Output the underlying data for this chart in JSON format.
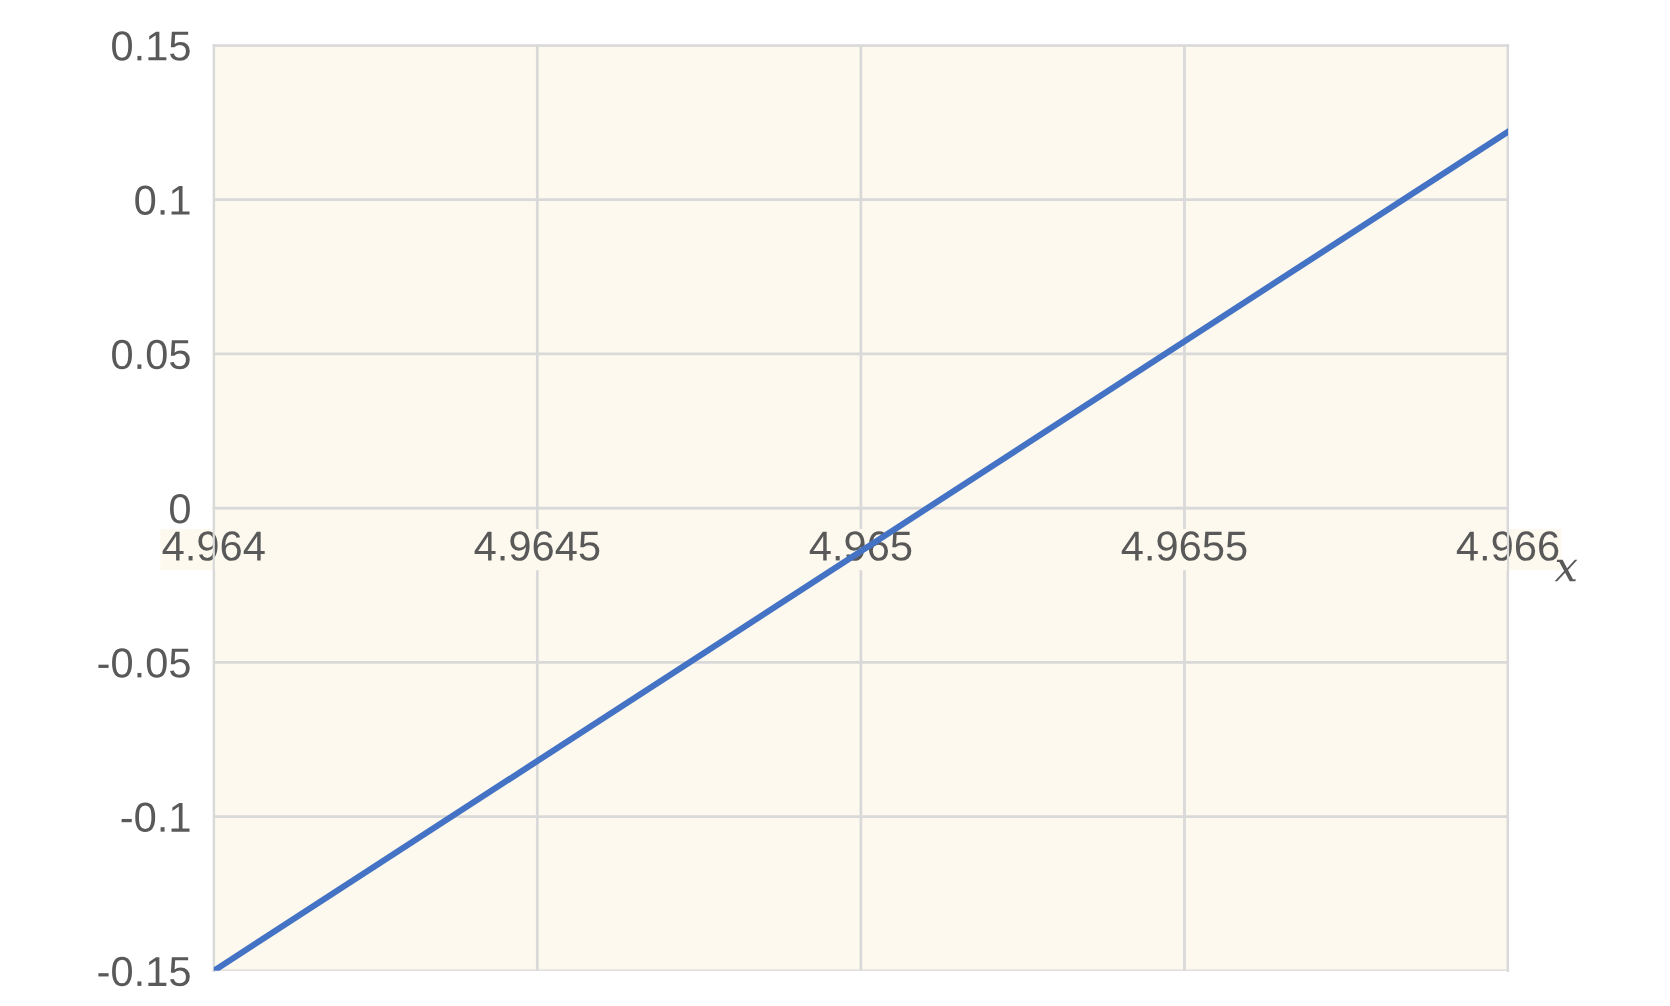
{
  "chart_data": {
    "type": "line",
    "xlabel": "x",
    "x": [
      4.964,
      4.966
    ],
    "series": [
      {
        "color": "#4472c4",
        "values": [
          -0.15,
          0.122
        ]
      }
    ],
    "xlim": [
      4.964,
      4.966
    ],
    "xticks": [
      4.964,
      4.9645,
      4.965,
      4.9655,
      4.966
    ],
    "ylim": [
      -0.15,
      0.15
    ],
    "yticks": [
      -0.15,
      -0.1,
      -0.05,
      0,
      0.05,
      0.1,
      0.15
    ],
    "grid": true,
    "marker": "none",
    "line_style": "solid"
  }
}
